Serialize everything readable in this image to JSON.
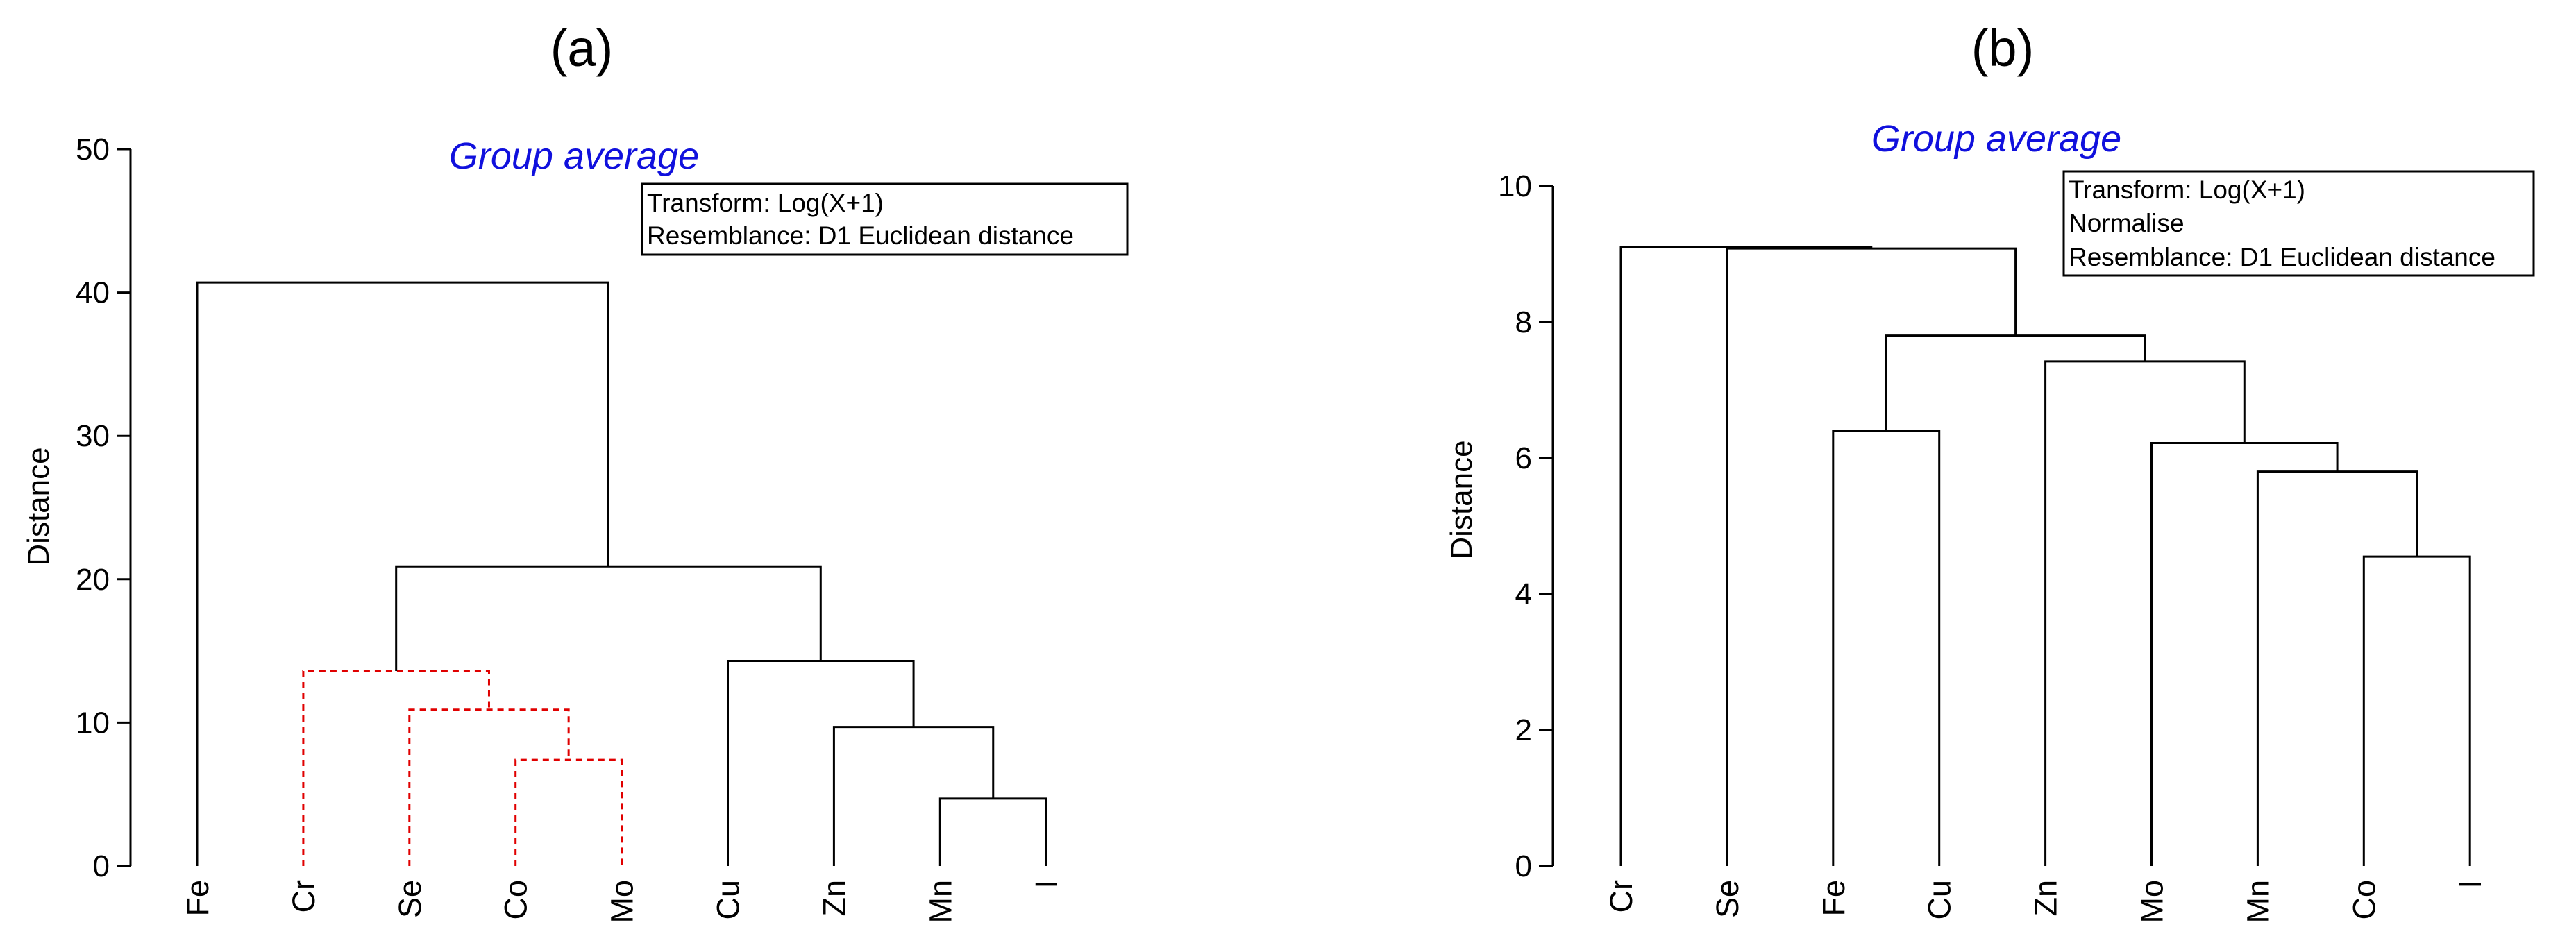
{
  "colors": {
    "title": "#1010dd",
    "line": "#000000",
    "highlight": "#e00000"
  },
  "chart_data": [
    {
      "type": "dendrogram",
      "panel_label": "(a)",
      "title": "Group average",
      "info": [
        "Transform: Log(X+1)",
        "Resemblance: D1 Euclidean distance"
      ],
      "ylabel": "Distance",
      "ylim": [
        0,
        50
      ],
      "yticks": [
        "0",
        "10",
        "20",
        "30",
        "40",
        "50"
      ],
      "leaves": [
        "Fe",
        "Cr",
        "Se",
        "Co",
        "Mo",
        "Cu",
        "Zn",
        "Mn",
        "I"
      ],
      "merges": [
        {
          "left": "Mn",
          "right": "I",
          "height": 4.7
        },
        {
          "left": "Co",
          "right": "Mo",
          "height": 7.4,
          "highlight": true
        },
        {
          "left": "Zn",
          "right": "Mn+I",
          "height": 9.7
        },
        {
          "left": "Se",
          "right": "Co+Mo",
          "height": 10.9,
          "highlight": true
        },
        {
          "left": "Cr",
          "right": "Se+Co+Mo",
          "height": 13.6,
          "highlight": true
        },
        {
          "left": "Cu",
          "right": "Zn+Mn+I",
          "height": 14.3
        },
        {
          "left": "Cr-Mo",
          "right": "Cu-I",
          "height": 20.9
        },
        {
          "left": "Fe",
          "right": "Cr-I",
          "height": 40.7
        }
      ]
    },
    {
      "type": "dendrogram",
      "panel_label": "(b)",
      "title": "Group average",
      "info": [
        "Transform: Log(X+1)",
        "Normalise",
        "Resemblance: D1 Euclidean distance"
      ],
      "ylabel": "Distance",
      "ylim": [
        0,
        10
      ],
      "yticks": [
        "0",
        "2",
        "4",
        "6",
        "8",
        "10"
      ],
      "leaves": [
        "Cr",
        "Se",
        "Fe",
        "Cu",
        "Zn",
        "Mo",
        "Mn",
        "Co",
        "I"
      ],
      "merges": [
        {
          "left": "Co",
          "right": "I",
          "height": 4.55
        },
        {
          "left": "Mn",
          "right": "Co+I",
          "height": 5.8
        },
        {
          "left": "Mo",
          "right": "Mn+Co+I",
          "height": 6.22
        },
        {
          "left": "Fe",
          "right": "Cu",
          "height": 6.4
        },
        {
          "left": "Zn",
          "right": "Mo-I",
          "height": 7.42
        },
        {
          "left": "Fe+Cu",
          "right": "Zn-I",
          "height": 7.8
        },
        {
          "left": "Se",
          "right": "Fe-I",
          "height": 9.08
        },
        {
          "left": "Cr",
          "right": "Se-I",
          "height": 9.1
        }
      ]
    }
  ]
}
